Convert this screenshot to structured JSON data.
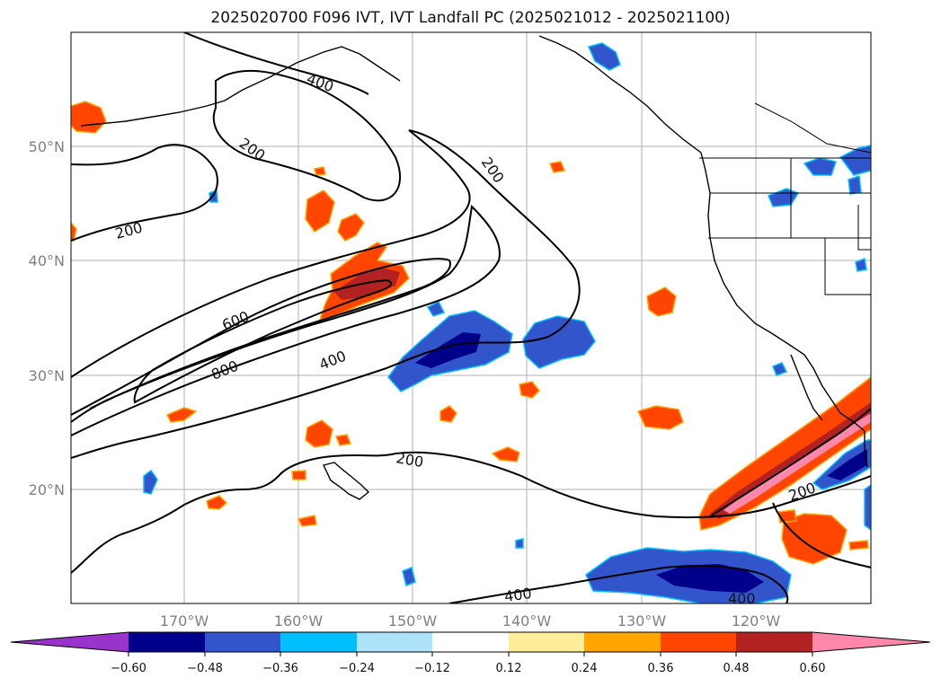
{
  "title": "2025020700 F096 IVT, IVT Landfall PC (2025021012 - 2025021100)",
  "map": {
    "lat_labels": [
      "50°N",
      "40°N",
      "30°N",
      "20°N"
    ],
    "lon_labels": [
      "170°W",
      "160°W",
      "150°W",
      "140°W",
      "130°W",
      "120°W"
    ],
    "contour_labels": [
      "400",
      "200",
      "200",
      "200",
      "600",
      "800",
      "400",
      "200",
      "200",
      "400",
      "400"
    ]
  },
  "colorbar": {
    "colors": [
      "#9933cc",
      "#00008b",
      "#3355cc",
      "#00bfff",
      "#aee4fb",
      "#ffffff",
      "#ffee99",
      "#ffa500",
      "#ff4500",
      "#b22222",
      "#ff88aa"
    ],
    "tick_labels": [
      "−0.60",
      "−0.48",
      "−0.36",
      "−0.24",
      "−0.12",
      "0.12",
      "0.24",
      "0.36",
      "0.48",
      "0.60"
    ]
  }
}
